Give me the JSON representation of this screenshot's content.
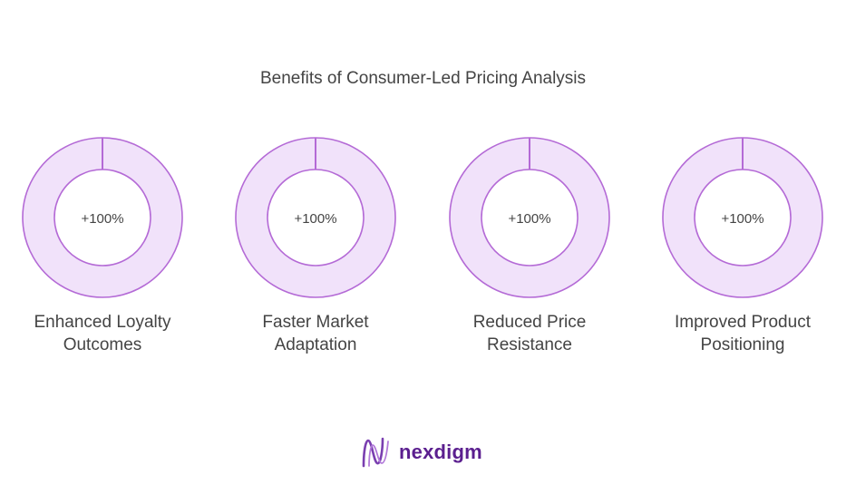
{
  "title": "Benefits of Consumer-Led Pricing Analysis",
  "chart_data": {
    "type": "pie",
    "title": "Benefits of Consumer-Led Pricing Analysis",
    "items": [
      {
        "label": "Enhanced Loyalty Outcomes",
        "value_text": "+100%",
        "value": 100
      },
      {
        "label": "Faster Market Adaptation",
        "value_text": "+100%",
        "value": 100
      },
      {
        "label": "Reduced Price Resistance",
        "value_text": "+100%",
        "value": 100
      },
      {
        "label": "Improved Product Positioning",
        "value_text": "+100%",
        "value": 100
      }
    ],
    "colors": {
      "ring_fill": "#f1e2fa",
      "ring_stroke": "#b46ad6",
      "text": "#444444"
    }
  },
  "label_lines": [
    [
      "Enhanced Loyalty",
      "Outcomes"
    ],
    [
      "Faster Market",
      "Adaptation"
    ],
    [
      "Reduced Price",
      "Resistance"
    ],
    [
      "Improved Product",
      "Positioning"
    ]
  ],
  "brand": {
    "name": "nexdigm",
    "logo_icon": "nexdigm-logo-icon",
    "color": "#5b1f8f"
  }
}
